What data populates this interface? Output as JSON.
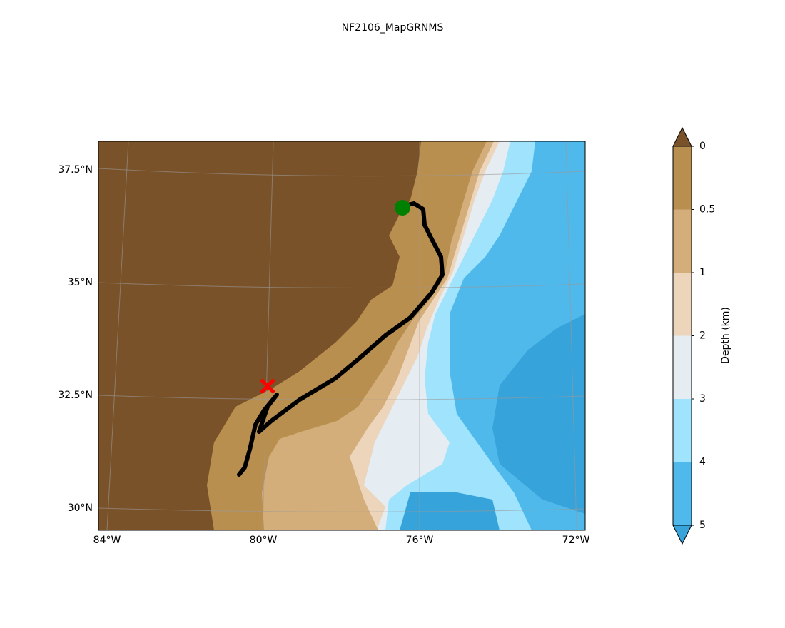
{
  "title": "NF2106_MapGRNMS",
  "map": {
    "lat_labels": [
      "37.5°N",
      "35°N",
      "32.5°N",
      "30°N"
    ],
    "lon_labels": [
      "84°W",
      "80°W",
      "76°W",
      "72°W"
    ]
  },
  "colorbar": {
    "label": "Depth (km)",
    "ticks": [
      0,
      0.5,
      1,
      2,
      3,
      4,
      5
    ],
    "colors": [
      "#b98f50",
      "#d4ae7a",
      "#ecd5bb",
      "#e5edf3",
      "#9fe3fd",
      "#4fb9ec"
    ],
    "over_color": "#7a5229",
    "under_color": "#36a3da"
  }
}
